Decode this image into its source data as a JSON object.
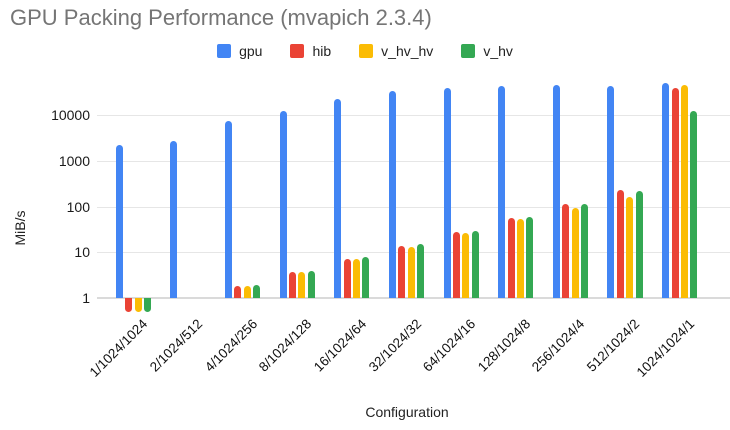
{
  "header": {
    "title": "GPU Packing Performance (mvapich 2.3.4)"
  },
  "chart_data": {
    "type": "bar",
    "title": "GPU Packing Performance (mvapich 2.3.4)",
    "xlabel": "Configuration",
    "ylabel": "MiB/s",
    "y_scale": "log",
    "y_ticks": [
      1,
      10,
      100,
      1000,
      10000
    ],
    "ylim": [
      0.4,
      60000
    ],
    "grid": true,
    "legend_position": "top",
    "categories": [
      "1/1024/1024",
      "2/1024/512",
      "4/1024/256",
      "8/1024/128",
      "16/1024/64",
      "32/1024/32",
      "64/1024/16",
      "128/1024/8",
      "256/1024/4",
      "512/1024/2",
      "1024/1024/1"
    ],
    "series": [
      {
        "name": "gpu",
        "color": "#4285F4",
        "values": [
          2200,
          2650,
          7400,
          12200,
          22000,
          33000,
          38000,
          43000,
          45000,
          43000,
          49000
        ]
      },
      {
        "name": "hib",
        "color": "#EA4335",
        "values": [
          0.5,
          null,
          1.8,
          3.7,
          7.3,
          14,
          28,
          56,
          115,
          235,
          39000
        ]
      },
      {
        "name": "v_hv_hv",
        "color": "#FBBC04",
        "values": [
          0.5,
          null,
          1.8,
          3.7,
          7.3,
          13,
          26,
          52,
          95,
          160,
          46000
        ]
      },
      {
        "name": "v_hv",
        "color": "#34A853",
        "values": [
          0.5,
          null,
          1.9,
          3.8,
          7.7,
          15,
          29,
          59,
          115,
          215,
          12000
        ]
      }
    ]
  },
  "colors": {
    "title_text": "#757575",
    "axis_text": "#222222",
    "gridline": "#e6e6e6",
    "baseline": "#dadada",
    "background": "#ffffff"
  }
}
